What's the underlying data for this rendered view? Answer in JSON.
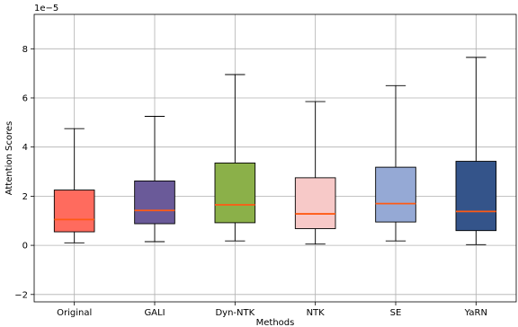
{
  "chart_data": {
    "type": "box",
    "xlabel": "Methods",
    "ylabel": "Attention Scores",
    "scale_label": "1e−5",
    "ylim": [
      -2.3,
      9.4
    ],
    "yticks": [
      -2,
      0,
      2,
      4,
      6,
      8
    ],
    "ytick_labels": [
      "−2",
      "0",
      "2",
      "4",
      "6",
      "8"
    ],
    "grid": true,
    "median_color": "#ff5a14",
    "boxes": [
      {
        "name": "Original",
        "whisker_low": 0.1,
        "q1": 0.55,
        "median": 1.05,
        "q3": 2.25,
        "whisker_high": 4.75,
        "color": "#ff6b5e"
      },
      {
        "name": "GALI",
        "whisker_low": 0.15,
        "q1": 0.88,
        "median": 1.42,
        "q3": 2.62,
        "whisker_high": 5.25,
        "color": "#6a5a99"
      },
      {
        "name": "Dyn-NTK",
        "whisker_low": 0.18,
        "q1": 0.92,
        "median": 1.65,
        "q3": 3.35,
        "whisker_high": 6.95,
        "color": "#8bb049"
      },
      {
        "name": "NTK",
        "whisker_low": 0.05,
        "q1": 0.68,
        "median": 1.28,
        "q3": 2.75,
        "whisker_high": 5.85,
        "color": "#f7c9c8"
      },
      {
        "name": "SE",
        "whisker_low": 0.18,
        "q1": 0.95,
        "median": 1.7,
        "q3": 3.18,
        "whisker_high": 6.5,
        "color": "#95a9d5"
      },
      {
        "name": "YaRN",
        "whisker_low": 0.03,
        "q1": 0.6,
        "median": 1.38,
        "q3": 3.42,
        "whisker_high": 7.65,
        "color": "#34548a"
      }
    ]
  }
}
